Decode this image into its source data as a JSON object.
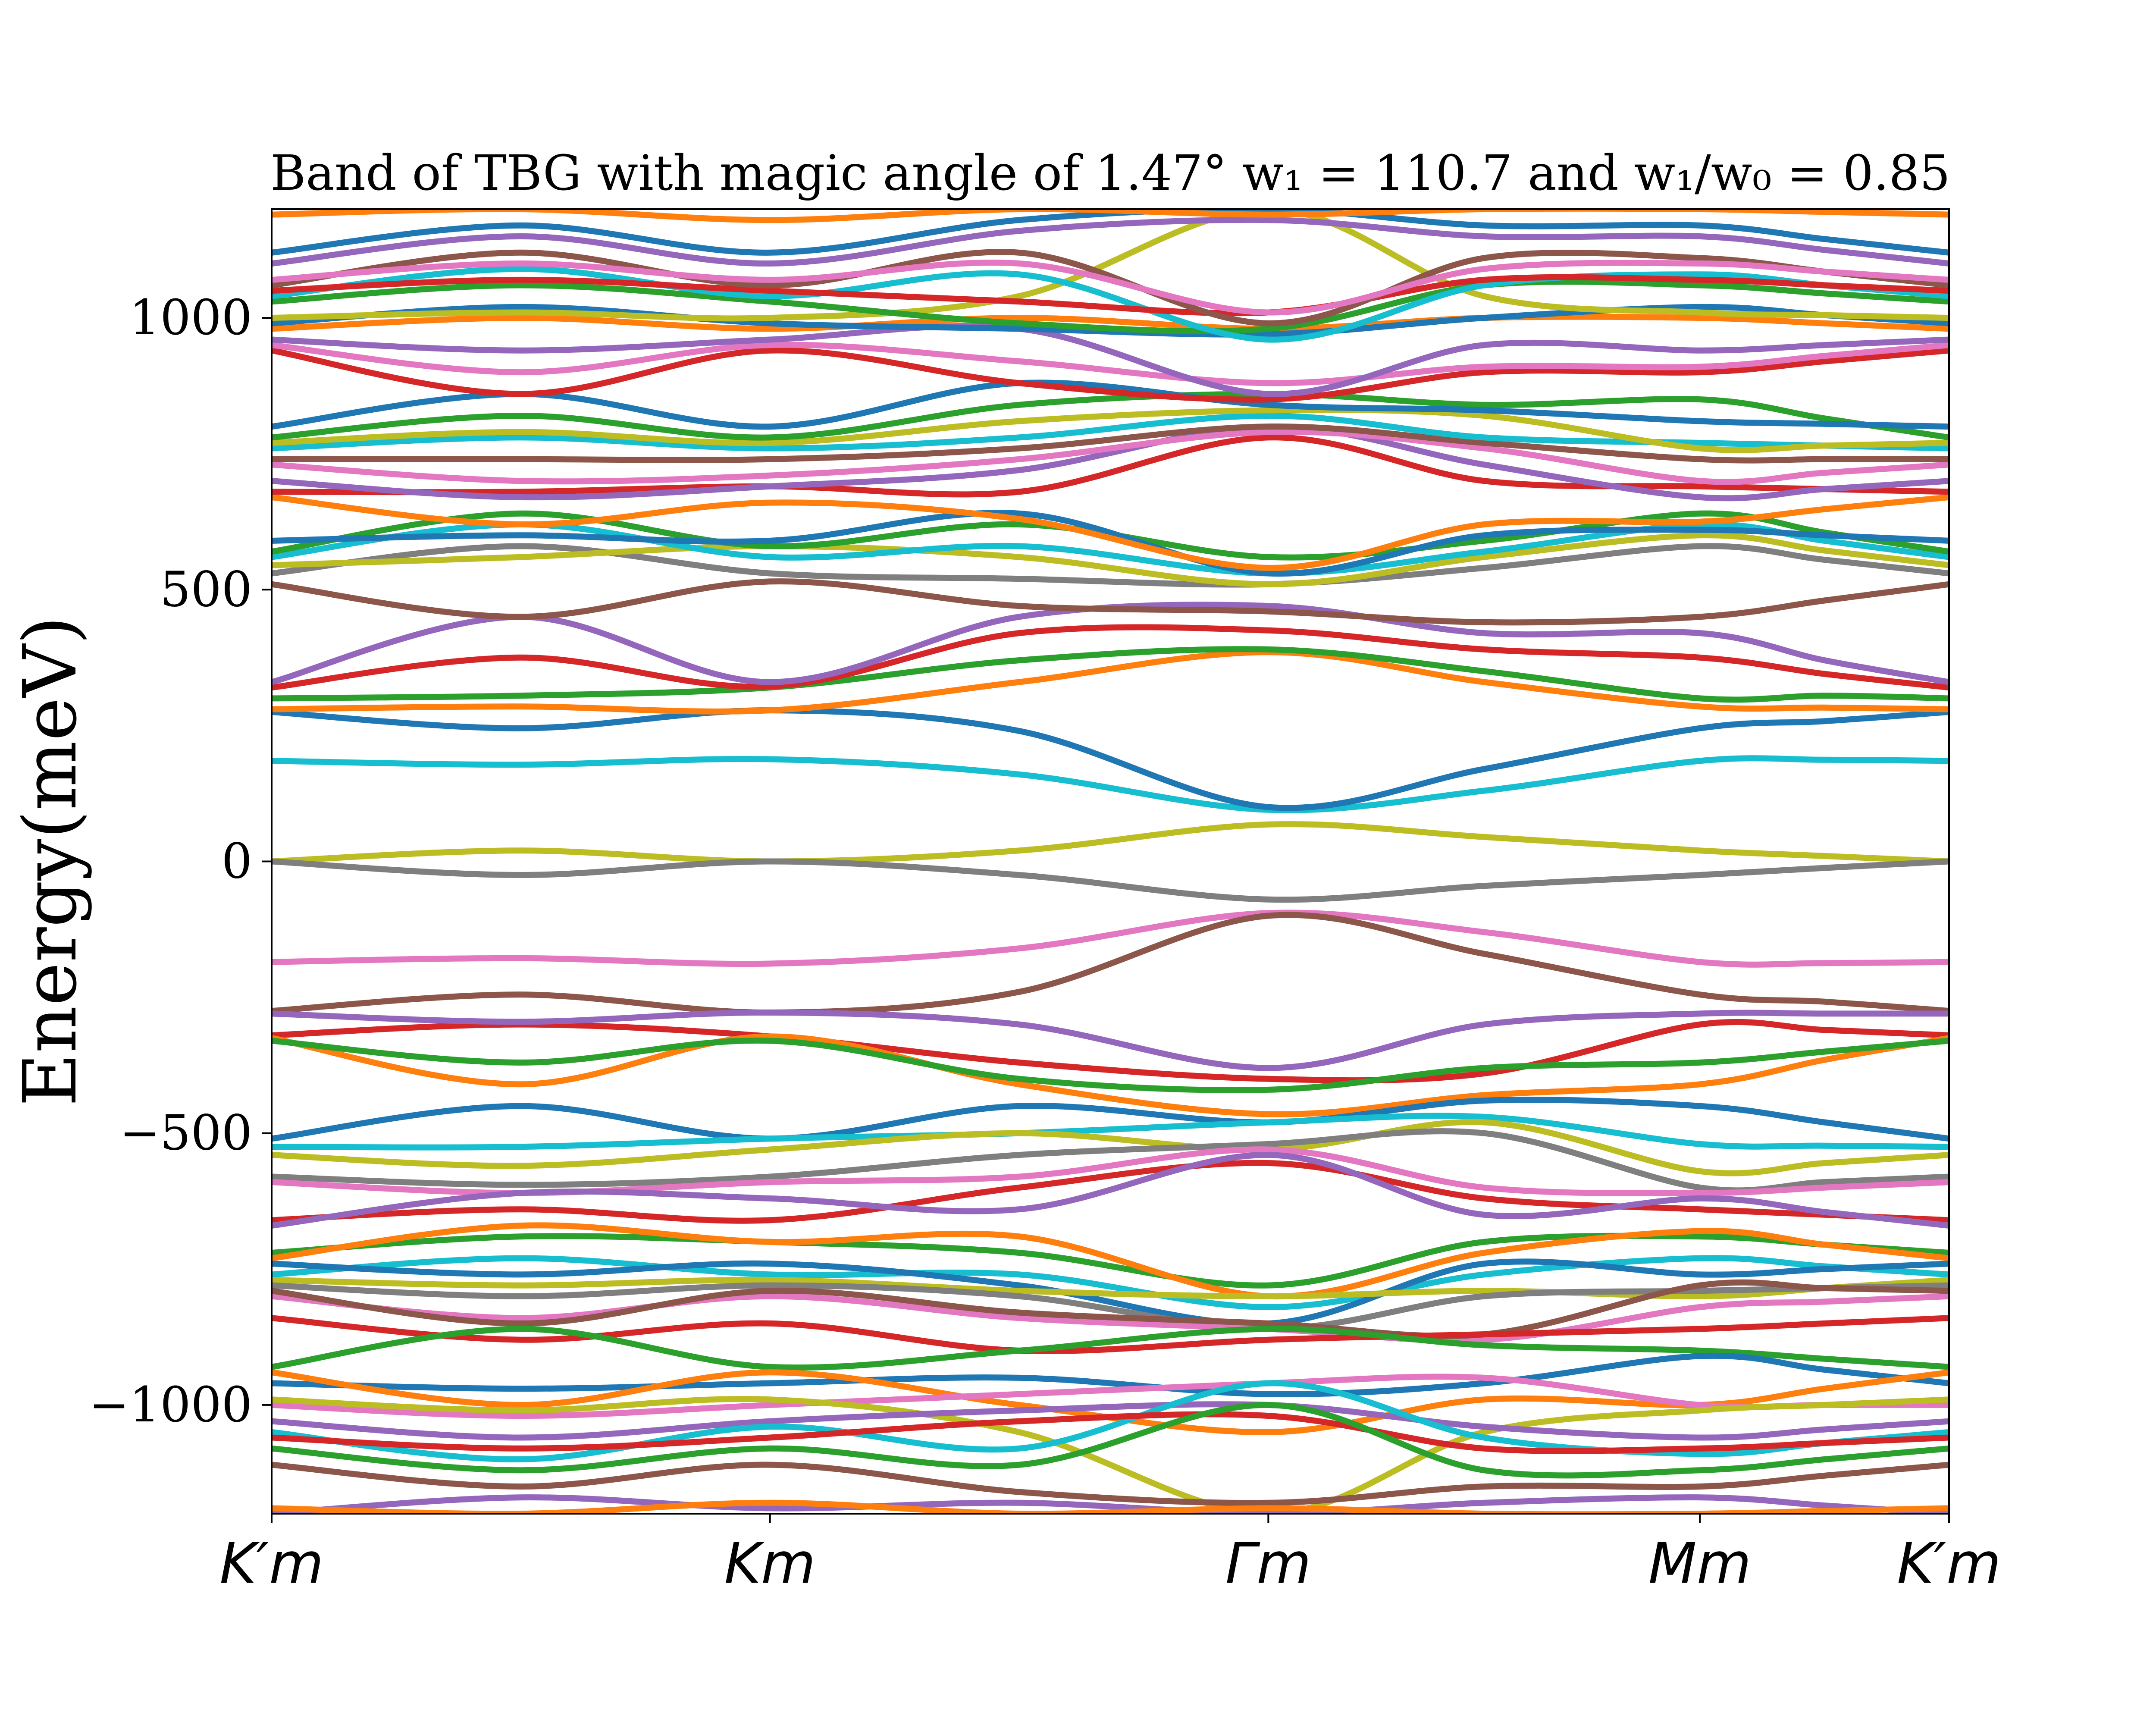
{
  "chart_data": {
    "type": "line",
    "title": "Band of TBG with magic angle of 1.47° w₁ = 110.7 and w₁/w₀ = 0.85",
    "ylabel": "Energy(meV)",
    "xlabel": "",
    "ylim": [
      -1200,
      1200
    ],
    "yticks": [
      -1000,
      -500,
      0,
      500,
      1000
    ],
    "ytick_labels": [
      "−1000",
      "−500",
      "0",
      "500",
      "1000"
    ],
    "x_ticks": [
      {
        "label": "K′m",
        "pos": 0.0
      },
      {
        "label": "Km",
        "pos": 1.0
      },
      {
        "label": "Γm",
        "pos": 2.0
      },
      {
        "label": "Mm",
        "pos": 2.866
      },
      {
        "label": "K′m",
        "pos": 3.366
      }
    ],
    "xlim": [
      0.0,
      3.366
    ],
    "grid": false,
    "legend": "none",
    "colors": [
      "#1f77b4",
      "#ff7f0e",
      "#2ca02c",
      "#d62728",
      "#9467bd",
      "#8c564b",
      "#e377c2",
      "#7f7f7f",
      "#bcbd22",
      "#17becf"
    ],
    "x_samples": [
      0.0,
      0.5,
      1.0,
      1.5,
      2.0,
      2.433,
      2.866,
      3.116,
      3.366
    ],
    "series": [
      {
        "color": "#bcbd22",
        "values": [
          0,
          20,
          0,
          20,
          68,
          45,
          20,
          10,
          0
        ]
      },
      {
        "color": "#7f7f7f",
        "values": [
          0,
          -25,
          0,
          -25,
          -70,
          -45,
          -25,
          -12,
          0
        ]
      },
      {
        "color": "#17becf",
        "values": [
          185,
          178,
          188,
          160,
          95,
          130,
          185,
          187,
          185
        ]
      },
      {
        "color": "#e377c2",
        "values": [
          -185,
          -178,
          -188,
          -160,
          -95,
          -130,
          -185,
          -187,
          -185
        ]
      },
      {
        "color": "#1f77b4",
        "values": [
          275,
          245,
          278,
          240,
          100,
          170,
          245,
          258,
          275
        ]
      },
      {
        "color": "#8c564b",
        "values": [
          -275,
          -245,
          -278,
          -240,
          -100,
          -170,
          -245,
          -258,
          -275
        ]
      },
      {
        "color": "#ff7f0e",
        "values": [
          280,
          285,
          278,
          330,
          385,
          330,
          285,
          283,
          280
        ]
      },
      {
        "color": "#2ca02c",
        "values": [
          300,
          305,
          320,
          370,
          390,
          350,
          300,
          305,
          300
        ]
      },
      {
        "color": "#d62728",
        "values": [
          320,
          375,
          322,
          420,
          425,
          390,
          375,
          345,
          320
        ]
      },
      {
        "color": "#9467bd",
        "values": [
          330,
          450,
          330,
          450,
          470,
          420,
          420,
          370,
          330
        ]
      },
      {
        "color": "#d62728",
        "values": [
          -320,
          -300,
          -322,
          -370,
          -400,
          -390,
          -300,
          -310,
          -320
        ]
      },
      {
        "color": "#ff7f0e",
        "values": [
          -325,
          -410,
          -322,
          -410,
          -465,
          -430,
          -410,
          -365,
          -325
        ]
      },
      {
        "color": "#2ca02c",
        "values": [
          -330,
          -370,
          -330,
          -400,
          -420,
          -380,
          -370,
          -350,
          -330
        ]
      },
      {
        "color": "#9467bd",
        "values": [
          -280,
          -295,
          -278,
          -300,
          -380,
          -300,
          -280,
          -280,
          -280
        ]
      },
      {
        "color": "#1f77b4",
        "values": [
          -510,
          -450,
          -510,
          -450,
          -480,
          -440,
          -450,
          -480,
          -510
        ]
      },
      {
        "color": "#17becf",
        "values": [
          -525,
          -525,
          -510,
          -500,
          -480,
          -470,
          -520,
          -523,
          -525
        ]
      },
      {
        "color": "#bcbd22",
        "values": [
          -540,
          -560,
          -530,
          -500,
          -530,
          -480,
          -570,
          -555,
          -540
        ]
      },
      {
        "color": "#7f7f7f",
        "values": [
          -580,
          -595,
          -580,
          -540,
          -520,
          -500,
          -600,
          -590,
          -580
        ]
      },
      {
        "color": "#e377c2",
        "values": [
          -590,
          -610,
          -590,
          -580,
          -530,
          -600,
          -610,
          -600,
          -590
        ]
      },
      {
        "color": "#d62728",
        "values": [
          -660,
          -640,
          -660,
          -600,
          -555,
          -620,
          -640,
          -650,
          -660
        ]
      },
      {
        "color": "#9467bd",
        "values": [
          -670,
          -610,
          -620,
          -640,
          -540,
          -650,
          -620,
          -645,
          -670
        ]
      },
      {
        "color": "#2ca02c",
        "values": [
          -720,
          -690,
          -700,
          -720,
          -780,
          -700,
          -690,
          -705,
          -720
        ]
      },
      {
        "color": "#ff7f0e",
        "values": [
          -730,
          -670,
          -700,
          -690,
          -800,
          -720,
          -680,
          -705,
          -730
        ]
      },
      {
        "color": "#17becf",
        "values": [
          -760,
          -730,
          -760,
          -760,
          -820,
          -760,
          -730,
          -745,
          -760
        ]
      },
      {
        "color": "#1f77b4",
        "values": [
          -740,
          -760,
          -740,
          -780,
          -850,
          -740,
          -760,
          -750,
          -740
        ]
      },
      {
        "color": "#bcbd22",
        "values": [
          -770,
          -780,
          -770,
          -790,
          -800,
          -790,
          -800,
          -785,
          -770
        ]
      },
      {
        "color": "#7f7f7f",
        "values": [
          -780,
          -800,
          -780,
          -800,
          -860,
          -800,
          -790,
          -785,
          -780
        ]
      },
      {
        "color": "#e377c2",
        "values": [
          -800,
          -840,
          -800,
          -840,
          -860,
          -880,
          -820,
          -810,
          -800
        ]
      },
      {
        "color": "#8c564b",
        "values": [
          -790,
          -850,
          -790,
          -830,
          -850,
          -870,
          -780,
          -785,
          -790
        ]
      },
      {
        "color": "#d62728",
        "values": [
          -840,
          -880,
          -850,
          -900,
          -880,
          -870,
          -860,
          -850,
          -840
        ]
      },
      {
        "color": "#2ca02c",
        "values": [
          -930,
          -860,
          -930,
          -900,
          -860,
          -890,
          -900,
          -915,
          -930
        ]
      },
      {
        "color": "#1f77b4",
        "values": [
          -960,
          -970,
          -960,
          -950,
          -980,
          -960,
          -910,
          -935,
          -960
        ]
      },
      {
        "color": "#ff7f0e",
        "values": [
          -940,
          -1000,
          -940,
          -1000,
          -1050,
          -990,
          -1000,
          -970,
          -940
        ]
      },
      {
        "color": "#e377c2",
        "values": [
          -1000,
          -1020,
          -1000,
          -980,
          -960,
          -950,
          -1000,
          -1000,
          -1000
        ]
      },
      {
        "color": "#bcbd22",
        "values": [
          -990,
          -1010,
          -990,
          -1050,
          -1200,
          -1050,
          -1010,
          -1000,
          -990
        ]
      },
      {
        "color": "#9467bd",
        "values": [
          -1030,
          -1060,
          -1030,
          -1010,
          -1000,
          -1040,
          -1060,
          -1045,
          -1030
        ]
      },
      {
        "color": "#17becf",
        "values": [
          -1050,
          -1100,
          -1040,
          -1080,
          -960,
          -1060,
          -1090,
          -1070,
          -1050
        ]
      },
      {
        "color": "#d62728",
        "values": [
          -1060,
          -1080,
          -1060,
          -1030,
          -1020,
          -1080,
          -1080,
          -1070,
          -1060
        ]
      },
      {
        "color": "#2ca02c",
        "values": [
          -1080,
          -1120,
          -1080,
          -1110,
          -1000,
          -1120,
          -1120,
          -1100,
          -1080
        ]
      },
      {
        "color": "#8c564b",
        "values": [
          -1110,
          -1150,
          -1110,
          -1160,
          -1180,
          -1150,
          -1150,
          -1130,
          -1110
        ]
      },
      {
        "color": "#9467bd",
        "values": [
          -1200,
          -1170,
          -1190,
          -1180,
          -1200,
          -1180,
          -1170,
          -1185,
          -1200
        ]
      },
      {
        "color": "#ff7f0e",
        "values": [
          -1190,
          -1200,
          -1180,
          -1200,
          -1190,
          -1200,
          -1200,
          -1195,
          -1190
        ]
      },
      {
        "color": "#8c564b",
        "values": [
          510,
          450,
          515,
          470,
          460,
          440,
          450,
          480,
          510
        ]
      },
      {
        "color": "#7f7f7f",
        "values": [
          530,
          580,
          530,
          520,
          510,
          540,
          580,
          555,
          530
        ]
      },
      {
        "color": "#bcbd22",
        "values": [
          545,
          560,
          580,
          560,
          510,
          560,
          600,
          572,
          545
        ]
      },
      {
        "color": "#17becf",
        "values": [
          560,
          620,
          560,
          580,
          530,
          570,
          620,
          590,
          560
        ]
      },
      {
        "color": "#2ca02c",
        "values": [
          570,
          640,
          580,
          620,
          560,
          590,
          640,
          605,
          570
        ]
      },
      {
        "color": "#1f77b4",
        "values": [
          590,
          600,
          590,
          640,
          530,
          600,
          610,
          600,
          590
        ]
      },
      {
        "color": "#ff7f0e",
        "values": [
          670,
          620,
          660,
          630,
          540,
          620,
          625,
          648,
          670
        ]
      },
      {
        "color": "#d62728",
        "values": [
          680,
          680,
          690,
          680,
          780,
          700,
          690,
          685,
          680
        ]
      },
      {
        "color": "#9467bd",
        "values": [
          700,
          670,
          690,
          720,
          800,
          730,
          670,
          685,
          700
        ]
      },
      {
        "color": "#e377c2",
        "values": [
          730,
          700,
          710,
          740,
          790,
          760,
          700,
          715,
          730
        ]
      },
      {
        "color": "#8c564b",
        "values": [
          740,
          740,
          740,
          760,
          800,
          770,
          740,
          740,
          740
        ]
      },
      {
        "color": "#17becf",
        "values": [
          760,
          780,
          760,
          780,
          820,
          780,
          770,
          765,
          760
        ]
      },
      {
        "color": "#bcbd22",
        "values": [
          770,
          790,
          770,
          810,
          830,
          820,
          760,
          765,
          770
        ]
      },
      {
        "color": "#2ca02c",
        "values": [
          780,
          820,
          780,
          840,
          860,
          840,
          850,
          815,
          780
        ]
      },
      {
        "color": "#1f77b4",
        "values": [
          800,
          860,
          800,
          880,
          840,
          830,
          810,
          805,
          800
        ]
      },
      {
        "color": "#d62728",
        "values": [
          940,
          860,
          940,
          880,
          850,
          900,
          900,
          920,
          940
        ]
      },
      {
        "color": "#e377c2",
        "values": [
          950,
          900,
          950,
          920,
          880,
          910,
          910,
          930,
          950
        ]
      },
      {
        "color": "#9467bd",
        "values": [
          960,
          940,
          960,
          980,
          860,
          950,
          940,
          950,
          960
        ]
      },
      {
        "color": "#ff7f0e",
        "values": [
          980,
          1000,
          980,
          1000,
          980,
          1000,
          1000,
          990,
          980
        ]
      },
      {
        "color": "#1f77b4",
        "values": [
          990,
          1020,
          990,
          980,
          970,
          1000,
          1020,
          1005,
          990
        ]
      },
      {
        "color": "#bcbd22",
        "values": [
          1000,
          1010,
          1000,
          1040,
          1200,
          1040,
          1010,
          1005,
          1000
        ]
      },
      {
        "color": "#2ca02c",
        "values": [
          1030,
          1060,
          1030,
          990,
          980,
          1060,
          1060,
          1045,
          1030
        ]
      },
      {
        "color": "#17becf",
        "values": [
          1040,
          1090,
          1040,
          1080,
          960,
          1060,
          1080,
          1060,
          1040
        ]
      },
      {
        "color": "#d62728",
        "values": [
          1050,
          1070,
          1050,
          1030,
          1010,
          1070,
          1070,
          1060,
          1050
        ]
      },
      {
        "color": "#8c564b",
        "values": [
          1060,
          1120,
          1060,
          1120,
          990,
          1110,
          1110,
          1085,
          1060
        ]
      },
      {
        "color": "#e377c2",
        "values": [
          1070,
          1100,
          1070,
          1100,
          1010,
          1090,
          1100,
          1085,
          1070
        ]
      },
      {
        "color": "#9467bd",
        "values": [
          1100,
          1150,
          1100,
          1160,
          1180,
          1150,
          1150,
          1125,
          1100
        ]
      },
      {
        "color": "#1f77b4",
        "values": [
          1120,
          1170,
          1120,
          1180,
          1200,
          1170,
          1170,
          1145,
          1120
        ]
      },
      {
        "color": "#ff7f0e",
        "values": [
          1190,
          1200,
          1180,
          1200,
          1190,
          1200,
          1200,
          1195,
          1190
        ]
      }
    ]
  }
}
